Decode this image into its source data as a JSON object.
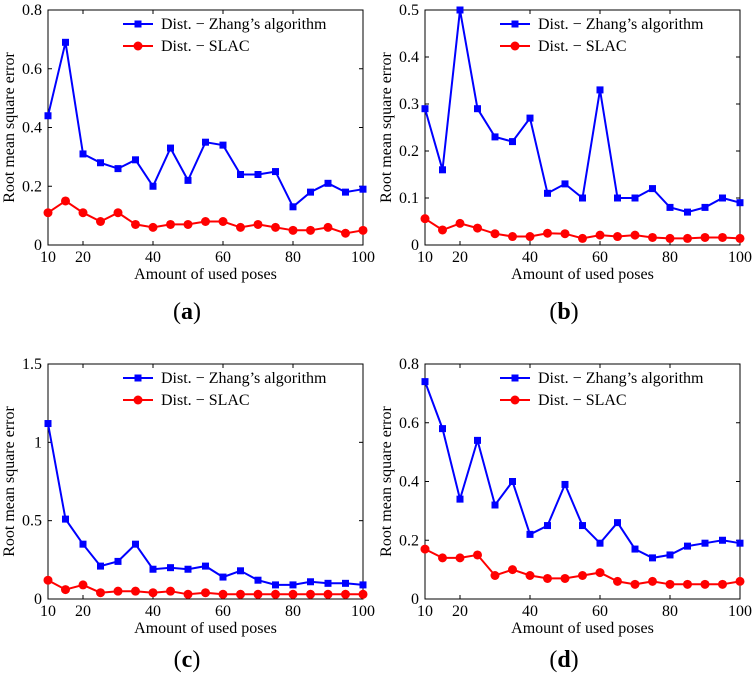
{
  "chart_data": [
    {
      "type": "line",
      "panel_label": "a",
      "xlabel": "Amount of used poses",
      "ylabel": "Root mean square error",
      "xlim": [
        10,
        100
      ],
      "ylim": [
        0,
        0.8
      ],
      "xticks": [
        "10",
        "20",
        "40",
        "60",
        "80",
        "100"
      ],
      "yticks": [
        "0",
        "0.2",
        "0.4",
        "0.6",
        "0.8"
      ],
      "legend_position": "top-right",
      "x": [
        10,
        15,
        20,
        25,
        30,
        35,
        40,
        45,
        50,
        55,
        60,
        65,
        70,
        75,
        80,
        85,
        90,
        95,
        100
      ],
      "series": [
        {
          "name": "Dist. − Zhang’s algorithm",
          "color": "#0000ff",
          "marker": "square",
          "values": [
            0.44,
            0.69,
            0.31,
            0.28,
            0.26,
            0.29,
            0.2,
            0.33,
            0.22,
            0.35,
            0.34,
            0.24,
            0.24,
            0.25,
            0.13,
            0.18,
            0.21,
            0.18,
            0.19
          ]
        },
        {
          "name": "Dist. − SLAC",
          "color": "#ff0000",
          "marker": "circle",
          "values": [
            0.11,
            0.15,
            0.11,
            0.08,
            0.11,
            0.07,
            0.06,
            0.07,
            0.07,
            0.08,
            0.08,
            0.06,
            0.07,
            0.06,
            0.05,
            0.05,
            0.06,
            0.04,
            0.05
          ]
        }
      ]
    },
    {
      "type": "line",
      "panel_label": "b",
      "xlabel": "Amount of used poses",
      "ylabel": "Root mean square error",
      "xlim": [
        10,
        100
      ],
      "ylim": [
        0,
        0.5
      ],
      "xticks": [
        "10",
        "20",
        "40",
        "60",
        "80",
        "100"
      ],
      "yticks": [
        "0",
        "0.1",
        "0.2",
        "0.3",
        "0.4",
        "0.5"
      ],
      "legend_position": "top-right",
      "x": [
        10,
        15,
        20,
        25,
        30,
        35,
        40,
        45,
        50,
        55,
        60,
        65,
        70,
        75,
        80,
        85,
        90,
        95,
        100
      ],
      "series": [
        {
          "name": "Dist. − Zhang’s algorithm",
          "color": "#0000ff",
          "marker": "square",
          "values": [
            0.29,
            0.16,
            0.5,
            0.29,
            0.23,
            0.22,
            0.27,
            0.11,
            0.13,
            0.1,
            0.33,
            0.1,
            0.1,
            0.12,
            0.08,
            0.07,
            0.08,
            0.1,
            0.09
          ]
        },
        {
          "name": "Dist. − SLAC",
          "color": "#ff0000",
          "marker": "circle",
          "values": [
            0.056,
            0.032,
            0.046,
            0.036,
            0.024,
            0.018,
            0.018,
            0.025,
            0.024,
            0.014,
            0.021,
            0.018,
            0.021,
            0.016,
            0.014,
            0.014,
            0.016,
            0.016,
            0.014
          ]
        }
      ]
    },
    {
      "type": "line",
      "panel_label": "c",
      "xlabel": "Amount of used poses",
      "ylabel": "Root mean square error",
      "xlim": [
        10,
        100
      ],
      "ylim": [
        0,
        1.5
      ],
      "xticks": [
        "10",
        "20",
        "40",
        "60",
        "80",
        "100"
      ],
      "yticks": [
        "0",
        "0.5",
        "1",
        "1.5"
      ],
      "legend_position": "top-right",
      "x": [
        10,
        15,
        20,
        25,
        30,
        35,
        40,
        45,
        50,
        55,
        60,
        65,
        70,
        75,
        80,
        85,
        90,
        95,
        100
      ],
      "series": [
        {
          "name": "Dist. − Zhang’s algorithm",
          "color": "#0000ff",
          "marker": "square",
          "values": [
            1.12,
            0.51,
            0.35,
            0.21,
            0.24,
            0.35,
            0.19,
            0.2,
            0.19,
            0.21,
            0.14,
            0.18,
            0.12,
            0.09,
            0.09,
            0.11,
            0.1,
            0.1,
            0.09
          ]
        },
        {
          "name": "Dist. − SLAC",
          "color": "#ff0000",
          "marker": "circle",
          "values": [
            0.12,
            0.06,
            0.09,
            0.04,
            0.05,
            0.05,
            0.04,
            0.05,
            0.03,
            0.04,
            0.03,
            0.03,
            0.03,
            0.03,
            0.03,
            0.03,
            0.03,
            0.03,
            0.03
          ]
        }
      ]
    },
    {
      "type": "line",
      "panel_label": "d",
      "xlabel": "Amount of used poses",
      "ylabel": "Root mean square error",
      "xlim": [
        10,
        100
      ],
      "ylim": [
        0,
        0.8
      ],
      "xticks": [
        "10",
        "20",
        "40",
        "60",
        "80",
        "100"
      ],
      "yticks": [
        "0",
        "0.2",
        "0.4",
        "0.6",
        "0.8"
      ],
      "legend_position": "top-right",
      "x": [
        10,
        15,
        20,
        25,
        30,
        35,
        40,
        45,
        50,
        55,
        60,
        65,
        70,
        75,
        80,
        85,
        90,
        95,
        100
      ],
      "series": [
        {
          "name": "Dist. − Zhang’s algorithm",
          "color": "#0000ff",
          "marker": "square",
          "values": [
            0.74,
            0.58,
            0.34,
            0.54,
            0.32,
            0.4,
            0.22,
            0.25,
            0.39,
            0.25,
            0.19,
            0.26,
            0.17,
            0.14,
            0.15,
            0.18,
            0.19,
            0.2,
            0.19
          ]
        },
        {
          "name": "Dist. − SLAC",
          "color": "#ff0000",
          "marker": "circle",
          "values": [
            0.17,
            0.14,
            0.14,
            0.15,
            0.08,
            0.1,
            0.08,
            0.07,
            0.07,
            0.08,
            0.09,
            0.06,
            0.05,
            0.06,
            0.05,
            0.05,
            0.05,
            0.05,
            0.06
          ]
        }
      ]
    }
  ]
}
